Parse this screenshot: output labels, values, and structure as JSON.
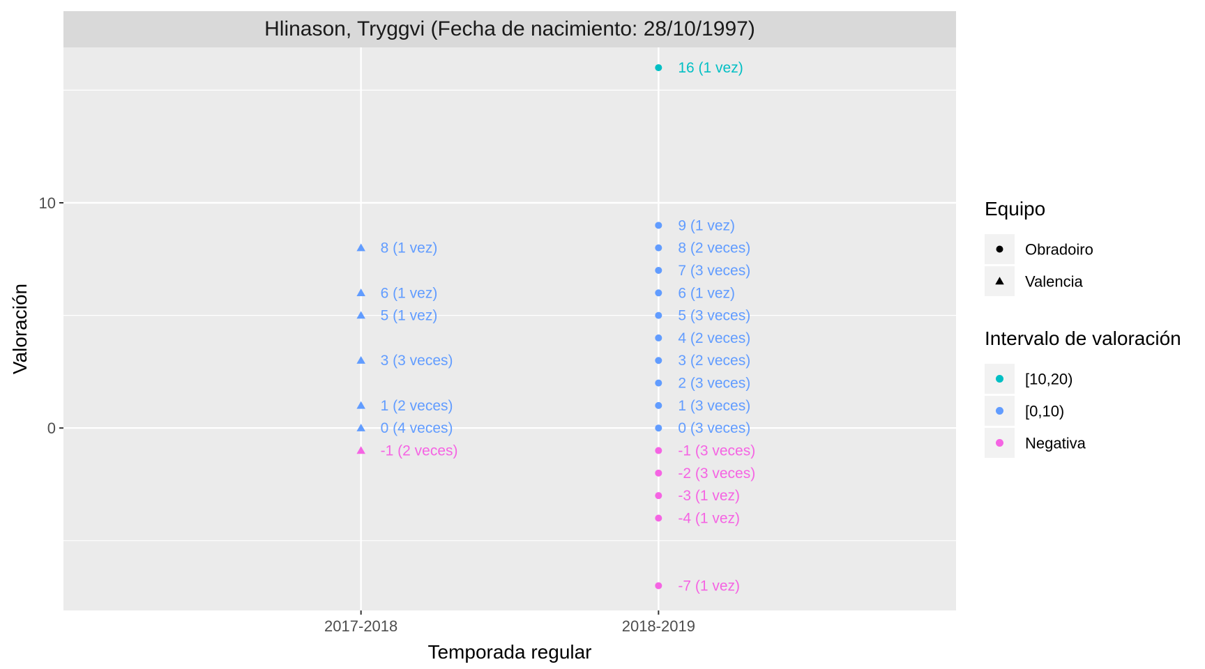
{
  "chart_data": {
    "type": "scatter",
    "facet_title": "Hlinason, Tryggvi (Fecha de nacimiento: 28/10/1997)",
    "xlabel": "Temporada regular",
    "ylabel": "Valoración",
    "categories": [
      "2017-2018",
      "2018-2019"
    ],
    "y_ticks": [
      0,
      10
    ],
    "ylim": [
      -8.1,
      16.9
    ],
    "grid": true,
    "legend_position": "right",
    "colors": {
      "[10,20)": "#00BFC4",
      "[0,10)": "#619CFF",
      "Negativa": "#F564E3"
    },
    "legends": [
      {
        "title": "Equipo",
        "items": [
          {
            "label": "Obradoiro",
            "shape": "circle"
          },
          {
            "label": "Valencia",
            "shape": "triangle"
          }
        ]
      },
      {
        "title": "Intervalo de valoración",
        "items": [
          {
            "label": "[10,20)",
            "color": "#00BFC4"
          },
          {
            "label": "[0,10)",
            "color": "#619CFF"
          },
          {
            "label": "Negativa",
            "color": "#F564E3"
          }
        ]
      }
    ],
    "points": [
      {
        "season": "2017-2018",
        "y": 8,
        "label": "8 (1 vez)",
        "team": "Valencia",
        "interval": "[0,10)"
      },
      {
        "season": "2017-2018",
        "y": 6,
        "label": "6 (1 vez)",
        "team": "Valencia",
        "interval": "[0,10)"
      },
      {
        "season": "2017-2018",
        "y": 5,
        "label": "5 (1 vez)",
        "team": "Valencia",
        "interval": "[0,10)"
      },
      {
        "season": "2017-2018",
        "y": 3,
        "label": "3 (3 veces)",
        "team": "Valencia",
        "interval": "[0,10)"
      },
      {
        "season": "2017-2018",
        "y": 1,
        "label": "1 (2 veces)",
        "team": "Valencia",
        "interval": "[0,10)"
      },
      {
        "season": "2017-2018",
        "y": 0,
        "label": "0 (4 veces)",
        "team": "Valencia",
        "interval": "[0,10)"
      },
      {
        "season": "2017-2018",
        "y": -1,
        "label": "-1 (2 veces)",
        "team": "Valencia",
        "interval": "Negativa"
      },
      {
        "season": "2018-2019",
        "y": 16,
        "label": "16 (1 vez)",
        "team": "Obradoiro",
        "interval": "[10,20)"
      },
      {
        "season": "2018-2019",
        "y": 9,
        "label": "9 (1 vez)",
        "team": "Obradoiro",
        "interval": "[0,10)"
      },
      {
        "season": "2018-2019",
        "y": 8,
        "label": "8 (2 veces)",
        "team": "Obradoiro",
        "interval": "[0,10)"
      },
      {
        "season": "2018-2019",
        "y": 7,
        "label": "7 (3 veces)",
        "team": "Obradoiro",
        "interval": "[0,10)"
      },
      {
        "season": "2018-2019",
        "y": 6,
        "label": "6 (1 vez)",
        "team": "Obradoiro",
        "interval": "[0,10)"
      },
      {
        "season": "2018-2019",
        "y": 5,
        "label": "5 (3 veces)",
        "team": "Obradoiro",
        "interval": "[0,10)"
      },
      {
        "season": "2018-2019",
        "y": 4,
        "label": "4 (2 veces)",
        "team": "Obradoiro",
        "interval": "[0,10)"
      },
      {
        "season": "2018-2019",
        "y": 3,
        "label": "3 (2 veces)",
        "team": "Obradoiro",
        "interval": "[0,10)"
      },
      {
        "season": "2018-2019",
        "y": 2,
        "label": "2 (3 veces)",
        "team": "Obradoiro",
        "interval": "[0,10)"
      },
      {
        "season": "2018-2019",
        "y": 1,
        "label": "1 (3 veces)",
        "team": "Obradoiro",
        "interval": "[0,10)"
      },
      {
        "season": "2018-2019",
        "y": 0,
        "label": "0 (3 veces)",
        "team": "Obradoiro",
        "interval": "[0,10)"
      },
      {
        "season": "2018-2019",
        "y": -1,
        "label": "-1 (3 veces)",
        "team": "Obradoiro",
        "interval": "Negativa"
      },
      {
        "season": "2018-2019",
        "y": -2,
        "label": "-2 (3 veces)",
        "team": "Obradoiro",
        "interval": "Negativa"
      },
      {
        "season": "2018-2019",
        "y": -3,
        "label": "-3 (1 vez)",
        "team": "Obradoiro",
        "interval": "Negativa"
      },
      {
        "season": "2018-2019",
        "y": -4,
        "label": "-4 (1 vez)",
        "team": "Obradoiro",
        "interval": "Negativa"
      },
      {
        "season": "2018-2019",
        "y": -7,
        "label": "-7 (1 vez)",
        "team": "Obradoiro",
        "interval": "Negativa"
      }
    ]
  }
}
